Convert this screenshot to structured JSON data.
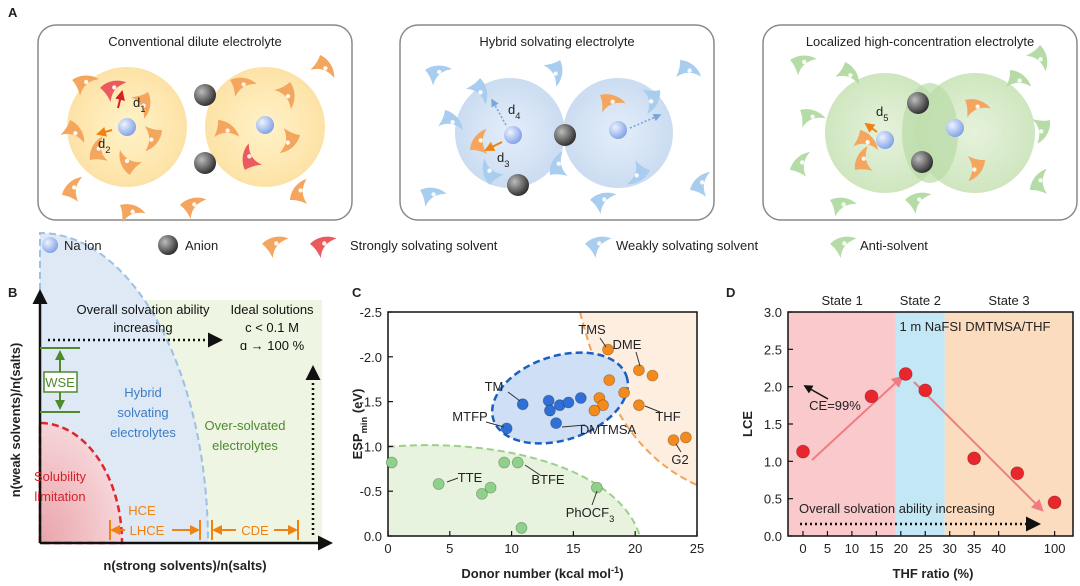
{
  "figure": {
    "panel_labels": [
      "A",
      "B",
      "C",
      "D"
    ],
    "A": {
      "boxes": [
        {
          "title": "Conventional dilute electrolyte",
          "distances": [
            {
              "text": "d",
              "sub": "1"
            },
            {
              "text": "d",
              "sub": "2"
            }
          ]
        },
        {
          "title": "Hybrid solvating electrolyte",
          "distances": [
            {
              "text": "d",
              "sub": "4"
            },
            {
              "text": "d",
              "sub": "3"
            }
          ]
        },
        {
          "title": "Localized high-concentration electrolyte",
          "distances": [
            {
              "text": "d",
              "sub": "5"
            }
          ]
        }
      ],
      "legend": [
        "Na ion",
        "Anion",
        "Strongly solvating solvent",
        "Weakly solvating solvent",
        "Anti-solvent"
      ]
    },
    "B": {
      "xlabel": "n(strong solvents)/n(salts)",
      "ylabel": "n(weak solvents)/n(salts)",
      "texts": [
        [
          "Overall solvation ability",
          "increasing"
        ],
        [
          "Ideal solutions",
          "c < 0.1 M",
          "ɑ → 100 %"
        ],
        [
          "WSE"
        ],
        [
          "Hybrid",
          "solvating",
          "electrolytes"
        ],
        [
          "Over-solvated",
          "electrolytes"
        ],
        [
          "Solubility",
          "limitation"
        ],
        [
          "HCE"
        ],
        [
          "LHCE"
        ],
        [
          "CDE"
        ]
      ]
    }
  },
  "chart_data": [
    {
      "type": "scatter",
      "xlabel": {
        "text": "Donor number (kcal mol",
        "sup": "-1",
        "rest": ")"
      },
      "ylabel": {
        "text": "ESP",
        "sub": "min",
        "rest": " (eV)"
      },
      "xlim": [
        0,
        25
      ],
      "ylim": [
        0,
        -2.5
      ],
      "xticks": [
        0,
        5,
        10,
        15,
        20,
        25
      ],
      "yticks": [
        -2.5,
        {
          "value": -2,
          "label": "-2.0"
        },
        -1.5,
        {
          "value": -1,
          "label": "-1.0"
        },
        -0.5,
        {
          "value": 0,
          "label": "0.0"
        }
      ],
      "series": [
        {
          "color": "#8fd18a",
          "x": [
            0.3,
            4.1,
            7.6,
            8.3,
            9.4,
            10.5,
            10.8,
            16.9
          ],
          "values": [
            -0.82,
            -0.58,
            -0.47,
            -0.54,
            -0.82,
            -0.82,
            -0.09,
            -0.54
          ]
        },
        {
          "color": "#2f6fd6",
          "x": [
            10.9,
            9.6,
            13.0,
            13.1,
            13.9,
            14.6,
            13.6,
            15.6
          ],
          "values": [
            -1.47,
            -1.2,
            -1.51,
            -1.4,
            -1.46,
            -1.49,
            -1.26,
            -1.54
          ]
        },
        {
          "color": "#f28a1e",
          "x": [
            17.8,
            20.3,
            21.4,
            17.9,
            19.1,
            17.1,
            17.4,
            16.7,
            20.3,
            24.1,
            23.1
          ],
          "values": [
            -2.08,
            -1.85,
            -1.79,
            -1.74,
            -1.6,
            -1.54,
            -1.46,
            -1.4,
            -1.46,
            -1.1,
            -1.07
          ]
        }
      ],
      "annotations": [
        {
          "text": "TMS"
        },
        {
          "text": "DME"
        },
        {
          "text": "TM"
        },
        {
          "text": "MTFP"
        },
        {
          "text": "DMTMSA"
        },
        {
          "text": "THF"
        },
        {
          "text": "G2"
        },
        {
          "text": "TTE"
        },
        {
          "text": "BTFE"
        },
        {
          "text": "PhOCF",
          "sub": "3"
        }
      ]
    },
    {
      "type": "scatter",
      "xlabel": "THF ratio (%)",
      "ylabel": "LCE",
      "xlim": [
        -3,
        120
      ],
      "ylim": [
        0,
        3
      ],
      "xticks": [
        0,
        5,
        10,
        15,
        20,
        25,
        30,
        35,
        40,
        100
      ],
      "yticks": [
        {
          "value": 0,
          "label": "0.0"
        },
        0.5,
        {
          "value": 1,
          "label": "1.0"
        },
        1.5,
        {
          "value": 2,
          "label": "2.0"
        },
        2.5,
        {
          "value": 3,
          "label": "3.0"
        }
      ],
      "regions": [
        {
          "name": "State 1",
          "from": -3,
          "to": 19,
          "color": "#f9c9cb"
        },
        {
          "name": "State 2",
          "from": 19,
          "to": 29,
          "color": "#c4e7f6"
        },
        {
          "name": "State 3",
          "from": 29,
          "to": 120,
          "color": "#fbdcbf"
        }
      ],
      "series": [
        {
          "color": "#e8262b",
          "x": [
            0,
            14,
            21,
            25,
            35,
            60,
            100
          ],
          "values": [
            1.13,
            1.87,
            2.17,
            1.95,
            1.04,
            0.84,
            0.45
          ]
        }
      ],
      "annotations": [
        "1 m NaFSI DMTMSA/THF",
        "CE=99%",
        "Overall solvation ability increasing"
      ]
    }
  ]
}
